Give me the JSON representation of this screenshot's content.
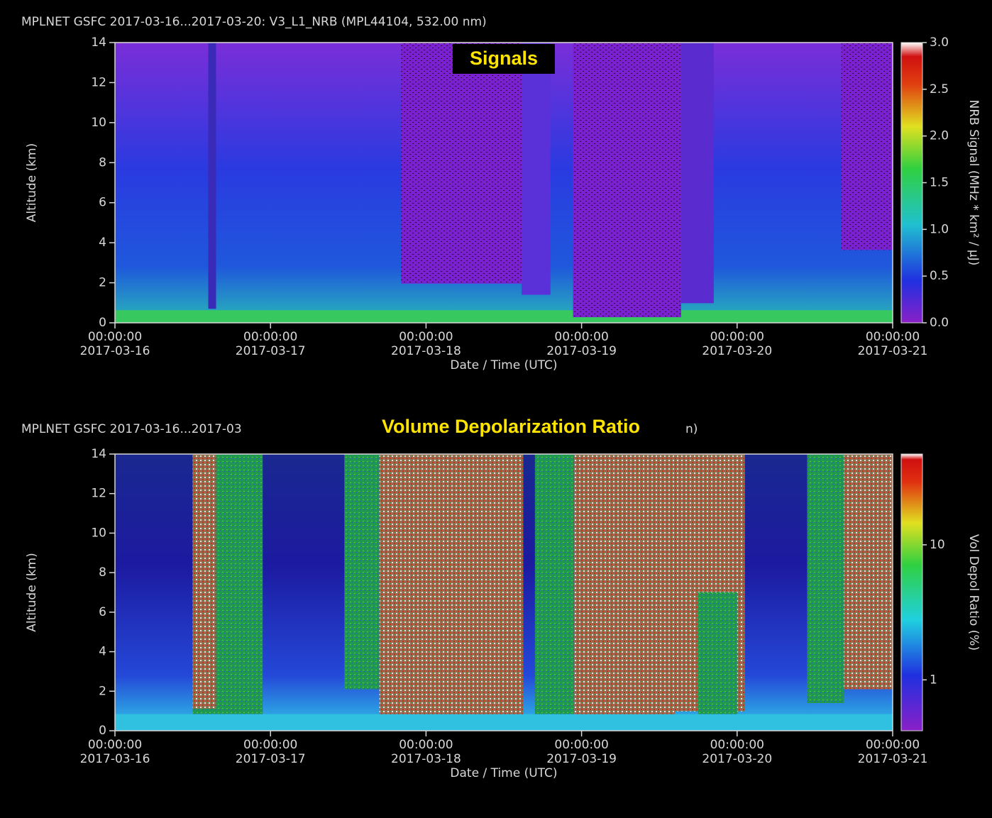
{
  "chart_data": [
    {
      "type": "heatmap",
      "title": "MPLNET GSFC 2017-03-16...2017-03-20:  V3_L1_NRB  (MPL44104, 532.00 nm)",
      "overlay_label": "Signals",
      "xlabel": "Date / Time (UTC)",
      "ylabel": "Altitude (km)",
      "xlim": [
        "2017-03-16",
        "2017-03-21"
      ],
      "xticks": [
        "2017-03-16",
        "2017-03-17",
        "2017-03-18",
        "2017-03-19",
        "2017-03-20",
        "2017-03-21"
      ],
      "xtick_times": [
        "00:00:00",
        "00:00:00",
        "00:00:00",
        "00:00:00",
        "00:00:00",
        "00:00:00"
      ],
      "ylim": [
        0,
        14
      ],
      "yticks": [
        0,
        2,
        4,
        6,
        8,
        10,
        12,
        14
      ],
      "colorbar": {
        "label": "NRB Signal (MHz * km² / μJ)",
        "log": false,
        "lim": [
          0,
          3
        ],
        "ticks": [
          {
            "value": 0,
            "label": "0.0"
          },
          {
            "value": 0.5,
            "label": "0.5"
          },
          {
            "value": 1,
            "label": "1.0"
          },
          {
            "value": 1.5,
            "label": "1.5"
          },
          {
            "value": 2,
            "label": "2.0"
          },
          {
            "value": 2.5,
            "label": "2.5"
          },
          {
            "value": 3,
            "label": "3.0"
          }
        ]
      }
    },
    {
      "type": "heatmap",
      "title": "MPLNET GSFC 2017-03-16...2017-03",
      "title_tail": "n)",
      "overlay_label": "Volume Depolarization Ratio",
      "xlabel": "Date / Time (UTC)",
      "ylabel": "Altitude (km)",
      "xlim": [
        "2017-03-16",
        "2017-03-21"
      ],
      "xticks": [
        "2017-03-16",
        "2017-03-17",
        "2017-03-18",
        "2017-03-19",
        "2017-03-20",
        "2017-03-21"
      ],
      "xtick_times": [
        "00:00:00",
        "00:00:00",
        "00:00:00",
        "00:00:00",
        "00:00:00",
        "00:00:00"
      ],
      "ylim": [
        0,
        14
      ],
      "yticks": [
        0,
        2,
        4,
        6,
        8,
        10,
        12,
        14
      ],
      "colorbar": {
        "label": "Vol Depol Ratio (%)",
        "log": true,
        "lim": [
          0.42,
          47
        ],
        "ticks": [
          1,
          10
        ]
      }
    }
  ]
}
